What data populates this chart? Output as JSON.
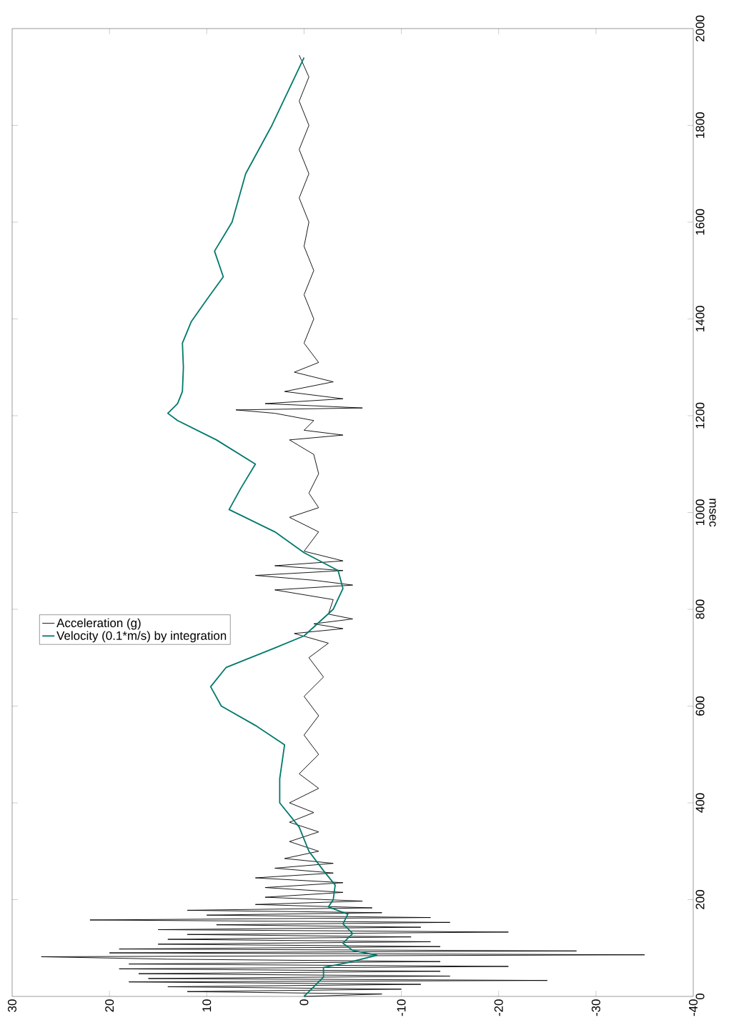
{
  "chart_data": {
    "type": "line",
    "ylabel": "msec",
    "ylim": [
      0,
      2000
    ],
    "yticks": [
      0,
      200,
      400,
      600,
      800,
      1000,
      1200,
      1400,
      1600,
      1800,
      2000
    ],
    "xlim": [
      30,
      -40
    ],
    "xticks": [
      30,
      20,
      10,
      0,
      -10,
      -20,
      -30,
      -40
    ],
    "grid": false,
    "legend": "left",
    "marker": "none",
    "line_style": "solid",
    "series": [
      {
        "name": "Acceleration (g)",
        "color": "#000000",
        "values": [
          0,
          5,
          10,
          15,
          20,
          25,
          30,
          33,
          37,
          42,
          47,
          52,
          57,
          62,
          67,
          72,
          77,
          82,
          86,
          90,
          94,
          98,
          103,
          108,
          113,
          118,
          123,
          128,
          133,
          138,
          143,
          148,
          153,
          158,
          163,
          168,
          173,
          178,
          183,
          190,
          197,
          205,
          215,
          225,
          235,
          245,
          255,
          265,
          275,
          285,
          300,
          320,
          340,
          360,
          380,
          400,
          430,
          460,
          500,
          540,
          580,
          620,
          660,
          700,
          730,
          750,
          760,
          770,
          780,
          790,
          820,
          840,
          850,
          860,
          870,
          880,
          890,
          900,
          920,
          960,
          990,
          1010,
          1040,
          1080,
          1120,
          1150,
          1160,
          1170,
          1190,
          1205,
          1212,
          1216,
          1225,
          1235,
          1250,
          1270,
          1290,
          1310,
          1350,
          1400,
          1450,
          1500,
          1550,
          1600,
          1650,
          1700,
          1750,
          1800,
          1850,
          1900,
          1945
        ],
        "x": [
          0,
          -8,
          12,
          -10,
          14,
          -12,
          18,
          -25,
          16,
          -15,
          17,
          -14,
          19,
          -21,
          18,
          -14,
          14,
          27,
          -35,
          20,
          -28,
          19,
          -14,
          15,
          -13,
          14,
          -11,
          12,
          -21,
          15,
          -12,
          9,
          -15,
          22,
          -13,
          10,
          -8,
          12,
          -7,
          5,
          -6,
          4,
          -4,
          4,
          -4,
          5,
          -3,
          3,
          -3,
          2,
          -1.5,
          1.5,
          -1.5,
          1.5,
          -1,
          1.5,
          -1.5,
          0.5,
          -1.5,
          0,
          -1.5,
          0,
          -2,
          -0.5,
          -2.5,
          1,
          -4,
          -1,
          -5,
          -2.5,
          -3,
          3,
          -5,
          -1,
          5,
          -4,
          3,
          -4,
          0,
          -1.5,
          1.5,
          -1.5,
          -0.5,
          -1.5,
          -1,
          1.5,
          -4,
          0,
          -1,
          3,
          7,
          -6,
          4,
          -4,
          2,
          -3,
          1,
          -1.5,
          0,
          -1,
          0,
          -1,
          0,
          -0.5,
          0.5,
          -0.5,
          0.5,
          -0.5,
          0.5,
          -0.5,
          0.5
        ]
      },
      {
        "name": "Velocity (0.1*m/s) by integration",
        "color": "#00796b",
        "values": [
          0,
          20,
          40,
          60,
          70,
          85,
          95,
          110,
          130,
          150,
          170,
          185,
          200,
          230,
          260,
          300,
          350,
          400,
          450,
          520,
          560,
          600,
          640,
          680,
          720,
          745,
          800,
          843,
          880,
          917,
          960,
          1006,
          1050,
          1100,
          1150,
          1190,
          1205,
          1225,
          1250,
          1300,
          1350,
          1394,
          1440,
          1487,
          1540,
          1600,
          1700,
          1800,
          1940
        ],
        "x": [
          0,
          -1,
          -2,
          -2,
          -4.5,
          -7.5,
          -5,
          -4,
          -5,
          -4,
          -4.5,
          -2.5,
          -3,
          -3.2,
          -2,
          -0.5,
          0.5,
          2.5,
          2.5,
          2,
          5,
          8.5,
          9.6,
          8,
          3,
          0,
          -3,
          -4,
          -3.5,
          0,
          3,
          7.7,
          6.5,
          5,
          9,
          13,
          14,
          13,
          12.5,
          12.4,
          12.5,
          11.6,
          10,
          8.3,
          9.2,
          7.4,
          6,
          3.3,
          0
        ]
      }
    ]
  }
}
